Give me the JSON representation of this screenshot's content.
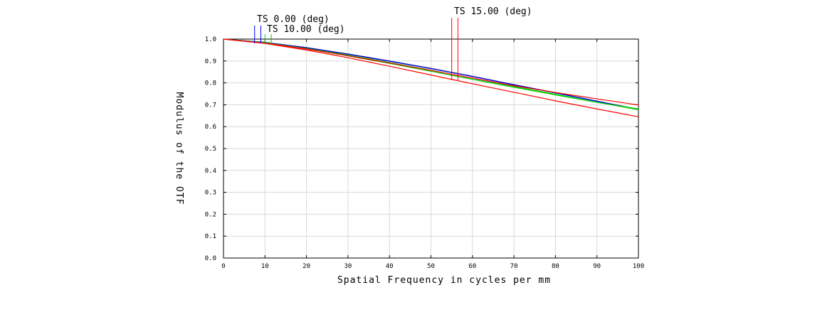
{
  "chart_data": {
    "type": "line",
    "title": "",
    "xlabel": "Spatial Frequency in cycles per mm",
    "ylabel": "Modulus of the OTF",
    "xlim": [
      0,
      100
    ],
    "ylim": [
      0.0,
      1.0
    ],
    "grid": true,
    "x_ticks": [
      "0",
      "10",
      "20",
      "30",
      "40",
      "50",
      "60",
      "70",
      "80",
      "90",
      "100"
    ],
    "y_ticks": [
      "0.0",
      "0.1",
      "0.2",
      "0.3",
      "0.4",
      "0.5",
      "0.6",
      "0.7",
      "0.8",
      "0.9",
      "1.0"
    ],
    "field_labels": [
      {
        "text": "TS 0.00 (deg)",
        "color": "#0000ff",
        "marker_x": [
          7.5,
          9.0
        ]
      },
      {
        "text": "TS 10.00 (deg)",
        "color": "#00cc00",
        "marker_x": [
          10.0,
          11.5
        ]
      },
      {
        "text": "TS 15.00 (deg)",
        "color": "#ff0000",
        "marker_x": [
          55.0,
          56.5
        ]
      }
    ],
    "series": [
      {
        "color": "#000000",
        "x": [
          0,
          10,
          20,
          30,
          40,
          50,
          60,
          70,
          80,
          90,
          100
        ],
        "y": [
          1.0,
          0.985,
          0.961,
          0.932,
          0.9,
          0.866,
          0.83,
          0.792,
          0.755,
          0.717,
          0.679
        ]
      },
      {
        "color": "#0000ff",
        "x": [
          0,
          10,
          20,
          30,
          40,
          50,
          60,
          70,
          80,
          90,
          100
        ],
        "y": [
          1.0,
          0.985,
          0.96,
          0.931,
          0.899,
          0.865,
          0.829,
          0.791,
          0.754,
          0.716,
          0.678
        ]
      },
      {
        "color": "#00cc00",
        "x": [
          0,
          10,
          20,
          30,
          40,
          50,
          60,
          70,
          80,
          90,
          100
        ],
        "y": [
          1.0,
          0.984,
          0.957,
          0.927,
          0.893,
          0.858,
          0.821,
          0.784,
          0.748,
          0.712,
          0.677
        ]
      },
      {
        "color": "#00cc00",
        "x": [
          0,
          10,
          20,
          30,
          40,
          50,
          60,
          70,
          80,
          90,
          100
        ],
        "y": [
          1.0,
          0.983,
          0.955,
          0.923,
          0.889,
          0.853,
          0.816,
          0.78,
          0.745,
          0.711,
          0.681
        ]
      },
      {
        "color": "#ff0000",
        "x": [
          0,
          10,
          20,
          30,
          40,
          50,
          60,
          70,
          80,
          90,
          100
        ],
        "y": [
          1.0,
          0.982,
          0.955,
          0.924,
          0.891,
          0.857,
          0.822,
          0.787,
          0.756,
          0.727,
          0.699
        ]
      },
      {
        "color": "#ff0000",
        "x": [
          0,
          10,
          20,
          30,
          40,
          50,
          60,
          70,
          80,
          90,
          100
        ],
        "y": [
          1.0,
          0.98,
          0.95,
          0.915,
          0.876,
          0.836,
          0.796,
          0.757,
          0.718,
          0.681,
          0.645
        ]
      }
    ]
  }
}
